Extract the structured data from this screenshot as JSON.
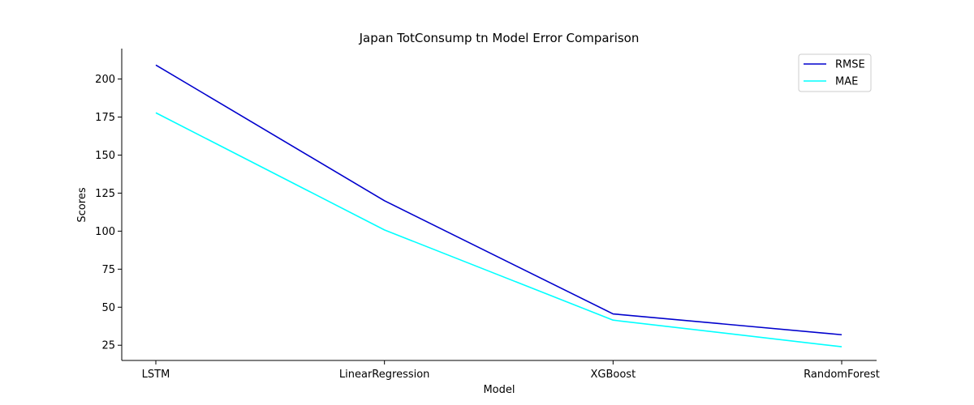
{
  "chart_data": {
    "type": "line",
    "title": "Japan TotConsump tn Model Error Comparison",
    "xlabel": "Model",
    "ylabel": "Scores",
    "categories": [
      "LSTM",
      "LinearRegression",
      "XGBoost",
      "RandomForest"
    ],
    "series": [
      {
        "name": "RMSE",
        "color": "#0000cd",
        "values": [
          209.2,
          120.0,
          45.6,
          31.9
        ]
      },
      {
        "name": "MAE",
        "color": "#00ffff",
        "values": [
          177.8,
          100.8,
          41.5,
          24.0
        ]
      }
    ],
    "ylim": [
      15,
      220
    ],
    "yticks": [
      25,
      50,
      75,
      100,
      125,
      150,
      175,
      200
    ],
    "grid": false,
    "legend_position": "top-right"
  }
}
